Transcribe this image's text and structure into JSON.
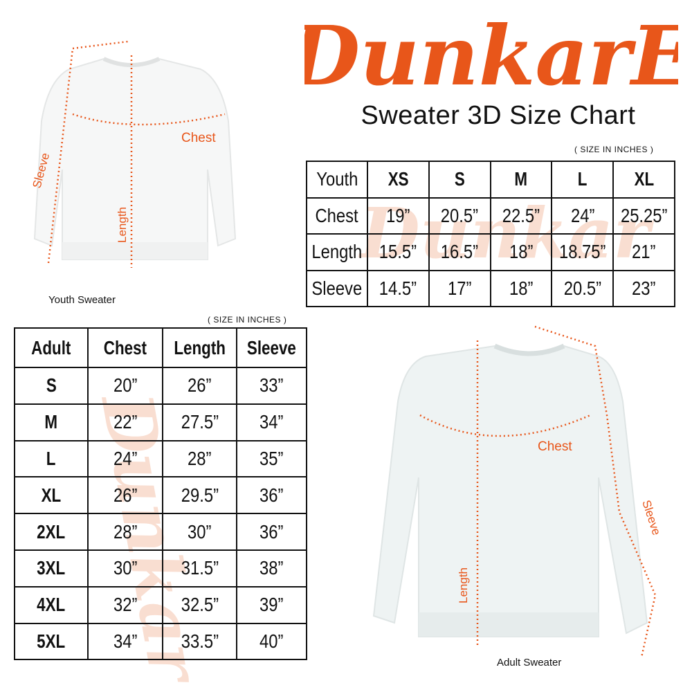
{
  "brand": {
    "logo_text": "DunkarE",
    "color": "#e8561a"
  },
  "title": "Sweater 3D Size Chart",
  "youth": {
    "units": "( SIZE IN INCHES )",
    "headers": [
      "Youth",
      "XS",
      "S",
      "M",
      "L",
      "XL"
    ],
    "rows": [
      {
        "label": "Chest",
        "values": [
          "19”",
          "20.5”",
          "22.5”",
          "24”",
          "25.25”"
        ]
      },
      {
        "label": "Length",
        "values": [
          "15.5”",
          "16.5”",
          "18”",
          "18.75”",
          "21”"
        ]
      },
      {
        "label": "Sleeve",
        "values": [
          "14.5”",
          "17”",
          "18”",
          "20.5”",
          "23”"
        ]
      }
    ],
    "image": {
      "caption": "Youth Sweater",
      "labels": {
        "chest": "Chest",
        "length": "Length",
        "sleeve": "Sleeve"
      }
    }
  },
  "adult": {
    "units": "( SIZE IN INCHES )",
    "headers": [
      "Adult",
      "Chest",
      "Length",
      "Sleeve"
    ],
    "rows": [
      {
        "size": "S",
        "values": [
          "20”",
          "26”",
          "33”"
        ]
      },
      {
        "size": "M",
        "values": [
          "22”",
          "27.5”",
          "34”"
        ]
      },
      {
        "size": "L",
        "values": [
          "24”",
          "28”",
          "35”"
        ]
      },
      {
        "size": "XL",
        "values": [
          "26”",
          "29.5”",
          "36”"
        ]
      },
      {
        "size": "2XL",
        "values": [
          "28”",
          "30”",
          "36”"
        ]
      },
      {
        "size": "3XL",
        "values": [
          "30”",
          "31.5”",
          "38”"
        ]
      },
      {
        "size": "4XL",
        "values": [
          "32”",
          "32.5”",
          "39”"
        ]
      },
      {
        "size": "5XL",
        "values": [
          "34”",
          "33.5”",
          "40”"
        ]
      }
    ],
    "image": {
      "caption": "Adult Sweater",
      "labels": {
        "chest": "Chest",
        "length": "Length",
        "sleeve": "Sleeve"
      }
    }
  }
}
